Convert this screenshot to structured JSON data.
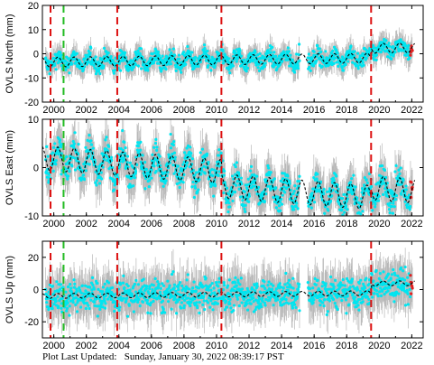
{
  "footer": {
    "label": "Plot Last Updated:",
    "value": "Sunday, January 30, 2022 08:39:17 PST"
  },
  "colors": {
    "data": "#00e5f0",
    "error_bars": "#b8b8b8",
    "recent": "#e02020",
    "model": "#000000",
    "event_red": "#dd1111",
    "event_green": "#22bb22"
  },
  "chart_data": [
    {
      "type": "scatter",
      "ylabel": "OVLS North (mm)",
      "x_ticks": [
        "2000",
        "2002",
        "2004",
        "2006",
        "2008",
        "2010",
        "2012",
        "2014",
        "2016",
        "2018",
        "2020",
        "2022"
      ],
      "y_ticks": [
        "-20",
        "-10",
        "0",
        "10",
        "20"
      ],
      "xlim": [
        1999.3,
        2022.7
      ],
      "ylim": [
        -20,
        20
      ],
      "red_events": [
        1999.8,
        2003.9,
        2010.3,
        2019.5
      ],
      "green_events": [
        2000.6
      ],
      "gap": [
        2015.1,
        2015.6
      ],
      "model": {
        "baseline": [
          -3.5,
          -1.5
        ],
        "seasonal_amplitude": 2.0,
        "offsets": [
          {
            "at": 2019.5,
            "shift": 4.0
          }
        ]
      },
      "series": [
        {
          "noise": 2.5
        }
      ]
    },
    {
      "type": "scatter",
      "ylabel": "OVLS East (mm)",
      "x_ticks": [
        "2000",
        "2002",
        "2004",
        "2006",
        "2008",
        "2010",
        "2012",
        "2014",
        "2016",
        "2018",
        "2020",
        "2022"
      ],
      "y_ticks": [
        "-10",
        "0",
        "10"
      ],
      "xlim": [
        1999.3,
        2022.7
      ],
      "ylim": [
        -10,
        10
      ],
      "red_events": [
        1999.8,
        2003.9,
        2010.3,
        2019.5
      ],
      "green_events": [
        2000.6
      ],
      "gap": [
        2015.1,
        2015.6
      ],
      "model": {
        "baseline": [
          2.0,
          -4.0
        ],
        "seasonal_amplitude": 2.5,
        "offsets": [
          {
            "at": 2010.3,
            "shift": -3.0
          },
          {
            "at": 2019.5,
            "shift": 2.0
          }
        ]
      },
      "series": [
        {
          "noise": 2.2
        }
      ]
    },
    {
      "type": "scatter",
      "ylabel": "OVLS Up (mm)",
      "x_ticks": [
        "2000",
        "2002",
        "2004",
        "2006",
        "2008",
        "2010",
        "2012",
        "2014",
        "2016",
        "2018",
        "2020",
        "2022"
      ],
      "y_ticks": [
        "-20",
        "0",
        "20"
      ],
      "xlim": [
        1999.3,
        2022.7
      ],
      "ylim": [
        -30,
        30
      ],
      "red_events": [
        1999.8,
        2003.9,
        2010.3,
        2019.5
      ],
      "green_events": [
        2000.6
      ],
      "gap": [
        2015.1,
        2015.6
      ],
      "model": {
        "baseline": [
          -4.0,
          -2.0
        ],
        "seasonal_amplitude": 1.5,
        "offsets": [
          {
            "at": 2019.5,
            "shift": 6.0
          }
        ]
      },
      "series": [
        {
          "noise": 7.0
        }
      ]
    }
  ]
}
